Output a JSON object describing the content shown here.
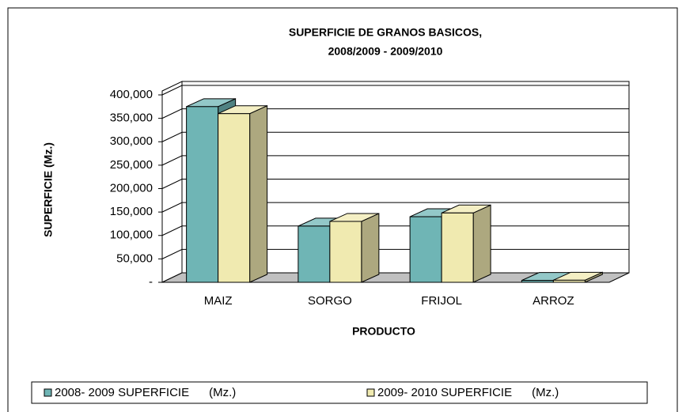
{
  "chart_data": {
    "type": "bar3d",
    "title": "SUPERFICIE DE GRANOS BASICOS,",
    "subtitle": "2008/2009 - 2009/2010",
    "y_label": "SUPERFICIE (Mz.)",
    "x_label": "PRODUCTO",
    "categories": [
      "MAIZ",
      "SORGO",
      "FRIJOL",
      "ARROZ"
    ],
    "series": [
      {
        "name": "2008- 2009 SUPERFICIE      (Mz.)",
        "color": "#6fb5b5",
        "values": [
          375000,
          120000,
          140000,
          4000
        ]
      },
      {
        "name": "2009- 2010 SUPERFICIE      (Mz.)",
        "color": "#f0eab0",
        "values": [
          360000,
          130000,
          148000,
          4500
        ]
      }
    ],
    "ylim": [
      0,
      400000
    ],
    "yticks": [
      {
        "value": 0,
        "label": "-"
      },
      {
        "value": 50000,
        "label": "50,000"
      },
      {
        "value": 100000,
        "label": "100,000"
      },
      {
        "value": 150000,
        "label": "150,000"
      },
      {
        "value": 200000,
        "label": "200,000"
      },
      {
        "value": 250000,
        "label": "250,000"
      },
      {
        "value": 300000,
        "label": "300,000"
      },
      {
        "value": 350000,
        "label": "350,000"
      },
      {
        "value": 400000,
        "label": "400,000"
      }
    ],
    "grid": true,
    "legend": "bottom"
  }
}
